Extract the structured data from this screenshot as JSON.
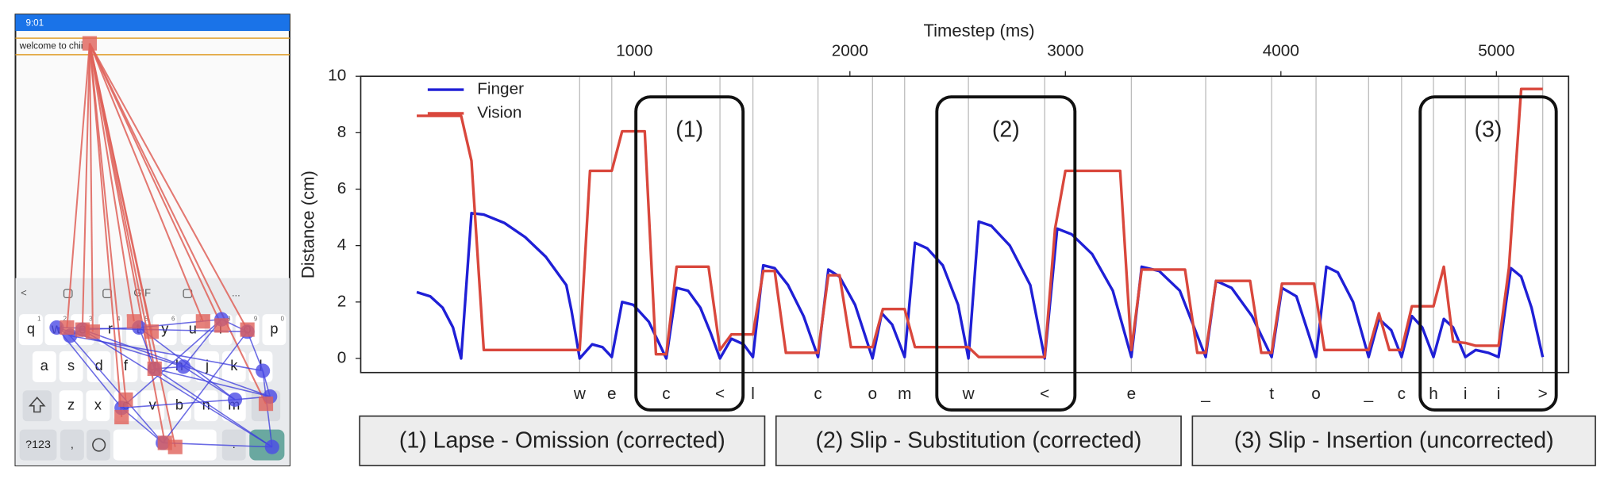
{
  "phone": {
    "time": "9:01",
    "text_field": "welcome to chii",
    "toolbar": [
      "<",
      "GIF",
      "..."
    ],
    "key_hints": [
      "1",
      "2",
      "3",
      "4",
      "5",
      "6",
      "7",
      "8",
      "9",
      "0"
    ],
    "keys": [
      [
        "q",
        "w",
        "e",
        "r",
        "t",
        "y",
        "u",
        "i",
        "o",
        "p"
      ],
      [
        "a",
        "s",
        "d",
        "f",
        "g",
        "h",
        "j",
        "k",
        "l"
      ],
      [
        "z",
        "x",
        "c",
        "v",
        "b",
        "n",
        "m"
      ],
      [
        "?123",
        ",",
        "."
      ]
    ]
  },
  "chart_data": {
    "type": "line",
    "xlabel": "Timestep (ms)",
    "ylabel": "Distance (cm)",
    "xlim": [
      -270,
      5335
    ],
    "xticks": [
      1000,
      2000,
      3000,
      4000,
      5000
    ],
    "ylim": [
      -0.5,
      10
    ],
    "yticks": [
      0,
      2,
      4,
      6,
      8,
      10
    ],
    "legend": "upper left",
    "key_ticks": [
      {
        "value": 746,
        "label": "w"
      },
      {
        "value": 895,
        "label": "e"
      },
      {
        "value": 1148,
        "label": "c"
      },
      {
        "value": 1397,
        "label": "<"
      },
      {
        "value": 1550,
        "label": "l"
      },
      {
        "value": 1852,
        "label": "c"
      },
      {
        "value": 2105,
        "label": "o"
      },
      {
        "value": 2254,
        "label": "m"
      },
      {
        "value": 2550,
        "label": "w"
      },
      {
        "value": 2904,
        "label": "<"
      },
      {
        "value": 3306,
        "label": "e"
      },
      {
        "value": 3651,
        "label": "_"
      },
      {
        "value": 3957,
        "label": "t"
      },
      {
        "value": 4163,
        "label": "o"
      },
      {
        "value": 4407,
        "label": "_"
      },
      {
        "value": 4560,
        "label": "c"
      },
      {
        "value": 4708,
        "label": "h"
      },
      {
        "value": 4856,
        "label": "i"
      },
      {
        "value": 5010,
        "label": "i"
      },
      {
        "value": 5215,
        "label": ">"
      }
    ],
    "series": [
      {
        "name": "Finger",
        "color": "#1f1fd6",
        "x": [
          -10,
          53,
          110,
          158,
          196,
          244,
          301,
          397,
          493,
          589,
          684,
          708,
          746,
          804,
          852,
          895,
          943,
          995,
          1067,
          1148,
          1196,
          1249,
          1306,
          1354,
          1397,
          1450,
          1507,
          1550,
          1598,
          1651,
          1713,
          1785,
          1852,
          1900,
          1952,
          2024,
          2105,
          2148,
          2196,
          2254,
          2302,
          2359,
          2431,
          2502,
          2550,
          2598,
          2656,
          2742,
          2837,
          2904,
          2962,
          3029,
          3124,
          3220,
          3306,
          3354,
          3435,
          3531,
          3651,
          3699,
          3771,
          3866,
          3957,
          4005,
          4072,
          4163,
          4211,
          4264,
          4335,
          4407,
          4455,
          4512,
          4560,
          4608,
          4656,
          4708,
          4756,
          4799,
          4856,
          4904,
          4962,
          5010,
          5067,
          5115,
          5163,
          5215
        ],
        "values": [
          2.35,
          2.2,
          1.8,
          1.1,
          0,
          5.15,
          5.1,
          4.8,
          4.3,
          3.6,
          2.6,
          1.7,
          0,
          0.5,
          0.4,
          0.05,
          2.0,
          1.9,
          1.3,
          0,
          2.5,
          2.4,
          1.8,
          0.9,
          0,
          0.7,
          0.5,
          0.05,
          3.3,
          3.2,
          2.6,
          1.5,
          0.05,
          3.15,
          2.9,
          1.9,
          0,
          1.6,
          1.2,
          0.05,
          4.1,
          3.9,
          3.3,
          1.9,
          0,
          4.85,
          4.7,
          4.0,
          2.6,
          0,
          4.6,
          4.4,
          3.7,
          2.4,
          0.05,
          3.25,
          3.1,
          2.4,
          0.05,
          2.75,
          2.5,
          1.5,
          0.05,
          2.5,
          2.2,
          0.05,
          3.25,
          3.05,
          2.0,
          0.05,
          1.4,
          1.0,
          0.05,
          1.5,
          1.1,
          0.05,
          1.4,
          1.1,
          0.05,
          0.3,
          0.2,
          0.05,
          3.2,
          2.9,
          1.8,
          0.05
        ]
      },
      {
        "name": "Vision",
        "color": "#d9473c",
        "x": [
          -10,
          196,
          244,
          301,
          746,
          794,
          895,
          943,
          1048,
          1100,
          1148,
          1196,
          1344,
          1397,
          1450,
          1550,
          1598,
          1651,
          1703,
          1852,
          1900,
          1952,
          2005,
          2105,
          2153,
          2254,
          2302,
          2550,
          2598,
          2904,
          2952,
          3000,
          3254,
          3306,
          3354,
          3555,
          3612,
          3651,
          3699,
          3857,
          3909,
          3957,
          4005,
          4154,
          4202,
          4407,
          4455,
          4503,
          4560,
          4608,
          4708,
          4756,
          4799,
          4856,
          4904,
          5010,
          5058,
          5115,
          5215
        ],
        "values": [
          8.6,
          8.6,
          7.0,
          0.3,
          0.3,
          6.65,
          6.65,
          8.05,
          8.05,
          0.15,
          0.15,
          3.25,
          3.25,
          0.3,
          0.85,
          0.85,
          3.1,
          3.1,
          0.2,
          0.2,
          2.95,
          2.95,
          0.4,
          0.4,
          1.75,
          1.75,
          0.4,
          0.4,
          0.05,
          0.05,
          4.6,
          6.65,
          6.65,
          0.3,
          3.15,
          3.15,
          0.2,
          0.2,
          2.75,
          2.75,
          0.2,
          0.2,
          2.65,
          2.65,
          0.3,
          0.3,
          1.6,
          0.3,
          0.3,
          1.85,
          1.85,
          3.25,
          0.6,
          0.55,
          0.45,
          0.45,
          3.2,
          9.55,
          9.55
        ]
      }
    ],
    "annotations": [
      "(1)",
      "(2)",
      "(3)"
    ]
  },
  "captions": [
    "(1) Lapse - Omission (corrected)",
    "(2) Slip - Substitution (corrected)",
    "(3) Slip - Insertion (uncorrected)"
  ]
}
